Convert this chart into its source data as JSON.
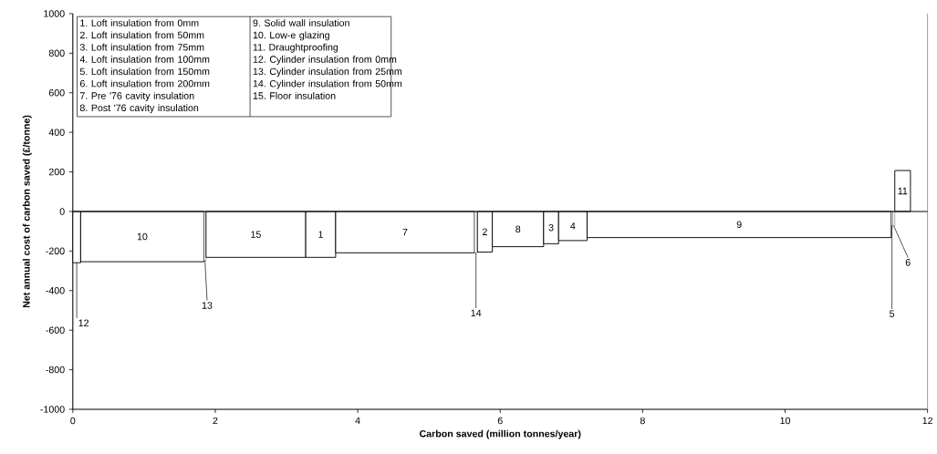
{
  "chart_data": {
    "type": "histogram",
    "xlabel": "Carbon saved (million tonnes/year)",
    "ylabel": "Net annual cost of carbon saved (£/tonne)",
    "bins": [
      0,
      0.11,
      1.84,
      1.87,
      3.27,
      3.69,
      5.64,
      5.68,
      5.89,
      6.61,
      6.82,
      7.22,
      11.49,
      11.51,
      11.54,
      11.76
    ],
    "values": [
      -259,
      -254,
      -250,
      -232,
      -232,
      -209,
      -209,
      -205,
      -178,
      -163,
      -147,
      -132,
      -73,
      -73,
      207
    ],
    "color": "#ffffff",
    "xlim": [
      0,
      12
    ],
    "xticks": [
      0,
      2,
      4,
      6,
      8,
      10,
      12
    ],
    "ylim": [
      -1000,
      1000
    ],
    "yticks": [
      -1000,
      -800,
      -600,
      -400,
      -200,
      0,
      200,
      400,
      600,
      800,
      1000
    ],
    "grid": false,
    "ref_lines": [
      {
        "axis": "y",
        "value": 0
      }
    ],
    "annotations": [
      "1. Loft insulation from 0mm",
      "2. Loft insulation from 50mm",
      "3. Loft insulation from 75mm",
      "4. Loft insulation from 100mm",
      "5. Loft insulation from 150mm",
      "6. Loft insulation from 200mm",
      "7. Pre '76 cavity insulation",
      "8. Post '76 cavity insulation",
      "9. Solid wall insulation",
      "10. Low-e glazing",
      "11. Draughtproofing",
      "12. Cylinder insulation from 0mm",
      "13. Cylinder insulation from 25mm",
      "14. Cylinder insulation from 50mm",
      "15. Floor insulation",
      {
        "text": "12",
        "x": 0.055,
        "y": -259
      },
      {
        "text": "10",
        "x": 0.975,
        "y": -254
      },
      {
        "text": "13",
        "x": 1.855,
        "y": -250
      },
      {
        "text": "15",
        "x": 2.57,
        "y": -232
      },
      {
        "text": "1",
        "x": 3.48,
        "y": -232
      },
      {
        "text": "7",
        "x": 4.665,
        "y": -209
      },
      {
        "text": "14",
        "x": 5.66,
        "y": -209
      },
      {
        "text": "2",
        "x": 5.785,
        "y": -205
      },
      {
        "text": "8",
        "x": 6.25,
        "y": -178
      },
      {
        "text": "3",
        "x": 6.715,
        "y": -163
      },
      {
        "text": "4",
        "x": 7.02,
        "y": -147
      },
      {
        "text": "9",
        "x": 9.355,
        "y": -132
      },
      {
        "text": "5",
        "x": 11.5,
        "y": -73
      },
      {
        "text": "6",
        "x": 11.525,
        "y": -73
      },
      {
        "text": "11",
        "x": 11.65,
        "y": 207
      }
    ]
  }
}
